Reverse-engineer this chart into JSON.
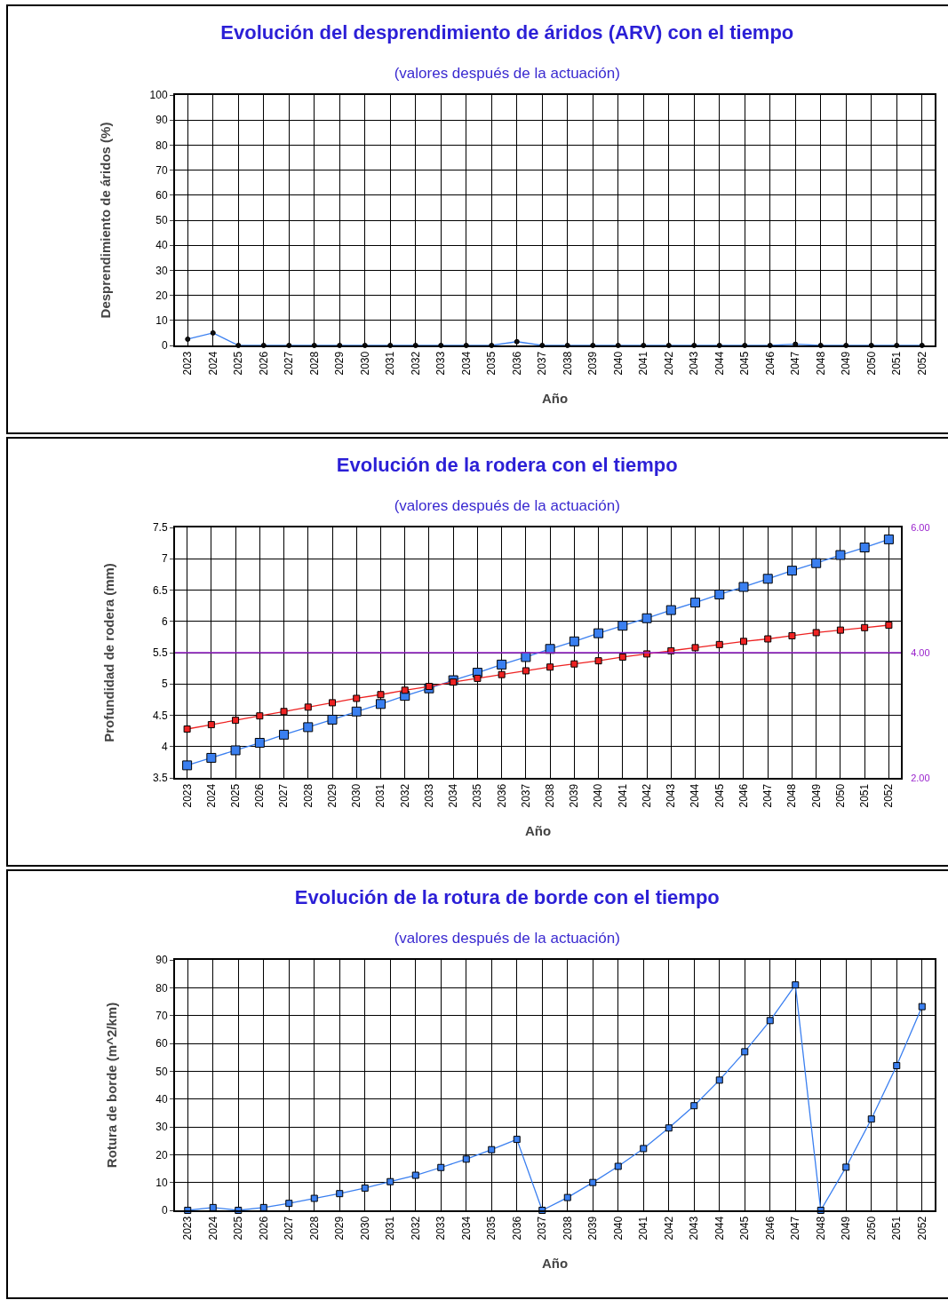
{
  "chart_data": [
    {
      "type": "line",
      "title": "Evolución del desprendimiento de áridos (ARV) con el tiempo",
      "subtitle": "(valores después de la actuación)",
      "xlabel": "Año",
      "ylabel": "Desprendimiento de áridos (%)",
      "categories": [
        "2023",
        "2024",
        "2025",
        "2026",
        "2027",
        "2028",
        "2029",
        "2030",
        "2031",
        "2032",
        "2033",
        "2034",
        "2035",
        "2036",
        "2037",
        "2038",
        "2039",
        "2040",
        "2041",
        "2042",
        "2043",
        "2044",
        "2045",
        "2046",
        "2047",
        "2048",
        "2049",
        "2050",
        "2051",
        "2052"
      ],
      "series": [
        {
          "color": "#3a7ff0",
          "values": [
            2.5,
            5,
            0,
            0,
            0,
            0,
            0,
            0,
            0,
            0,
            0,
            0,
            0,
            1.5,
            0,
            0,
            0,
            0,
            0,
            0,
            0,
            0,
            0,
            0,
            0.5,
            0,
            0,
            0,
            0,
            0
          ]
        }
      ],
      "ylim": [
        0,
        100
      ],
      "yticks": [
        0,
        10,
        20,
        30,
        40,
        50,
        60,
        70,
        80,
        90,
        100
      ],
      "grid": true,
      "marker": "circle"
    },
    {
      "type": "line",
      "title": "Evolución de la rodera con el tiempo",
      "subtitle": "(valores después de la actuación)",
      "xlabel": "Año",
      "ylabel": "Profundidad de rodera (mm)",
      "categories": [
        "2023",
        "2024",
        "2025",
        "2026",
        "2027",
        "2028",
        "2029",
        "2030",
        "2031",
        "2032",
        "2033",
        "2034",
        "2035",
        "2036",
        "2037",
        "2038",
        "2039",
        "2040",
        "2041",
        "2042",
        "2043",
        "2044",
        "2045",
        "2046",
        "2047",
        "2048",
        "2049",
        "2050",
        "2051",
        "2052"
      ],
      "series": [
        {
          "color": "#3a7ff0",
          "values": [
            3.7,
            3.82,
            3.94,
            4.06,
            4.19,
            4.31,
            4.43,
            4.56,
            4.68,
            4.81,
            4.93,
            5.06,
            5.18,
            5.31,
            5.43,
            5.56,
            5.68,
            5.81,
            5.93,
            6.05,
            6.18,
            6.3,
            6.43,
            6.55,
            6.68,
            6.81,
            6.93,
            7.06,
            7.18,
            7.31
          ]
        },
        {
          "color": "#ee2222",
          "values": [
            4.28,
            4.35,
            4.42,
            4.49,
            4.56,
            4.63,
            4.7,
            4.77,
            4.83,
            4.9,
            4.96,
            5.03,
            5.09,
            5.15,
            5.21,
            5.27,
            5.32,
            5.37,
            5.43,
            5.48,
            5.53,
            5.58,
            5.63,
            5.68,
            5.72,
            5.77,
            5.82,
            5.86,
            5.9,
            5.94
          ]
        }
      ],
      "ylim": [
        3.5,
        7.5
      ],
      "yticks": [
        3.5,
        4,
        4.5,
        5,
        5.5,
        6,
        6.5,
        7,
        7.5
      ],
      "y2lim": [
        2,
        6
      ],
      "y2ticks": [
        {
          "value": 2,
          "label": "2.00"
        },
        {
          "value": 4,
          "label": "4.00"
        },
        {
          "value": 6,
          "label": "6.00"
        }
      ],
      "ref_lines": [
        {
          "axis": "y2",
          "value": 4,
          "color": "#9922cc"
        }
      ],
      "grid": true,
      "marker": "square"
    },
    {
      "type": "line",
      "title": "Evolución de la rotura de borde con el tiempo",
      "subtitle": "(valores después de la actuación)",
      "xlabel": "Año",
      "ylabel": "Rotura de borde (m^2/km)",
      "categories": [
        "2023",
        "2024",
        "2025",
        "2026",
        "2027",
        "2028",
        "2029",
        "2030",
        "2031",
        "2032",
        "2033",
        "2034",
        "2035",
        "2036",
        "2037",
        "2038",
        "2039",
        "2040",
        "2041",
        "2042",
        "2043",
        "2044",
        "2045",
        "2046",
        "2047",
        "2048",
        "2049",
        "2050",
        "2051",
        "2052"
      ],
      "series": [
        {
          "color": "#3a7ff0",
          "values": [
            0,
            1,
            0,
            1,
            2.5,
            4.3,
            6,
            8,
            10.3,
            12.6,
            15.4,
            18.4,
            21.8,
            25.5,
            0,
            4.6,
            10,
            15.8,
            22.2,
            29.6,
            37.6,
            46.8,
            57,
            68.2,
            81,
            0,
            15.5,
            32.8,
            52,
            73.2
          ]
        }
      ],
      "ylim": [
        0,
        90
      ],
      "yticks": [
        0,
        10,
        20,
        30,
        40,
        50,
        60,
        70,
        80,
        90
      ],
      "grid": true,
      "marker": "square"
    }
  ]
}
